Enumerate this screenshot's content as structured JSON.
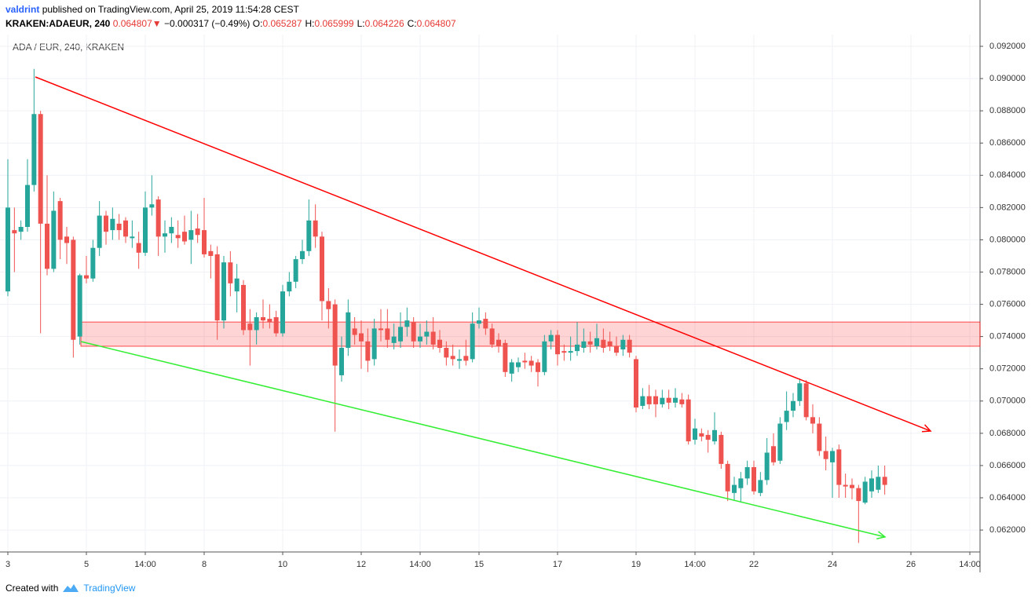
{
  "header": {
    "author": "valdrint",
    "published": "published on TradingView.com, April 25, 2019 11:54:28 CEST",
    "symbol": "KRAKEN:ADAEUR, 240",
    "last": "0.064807",
    "arrow": "▼",
    "change": "−0.000317 (−0.49%)",
    "ohlc": [
      {
        "label": "O:",
        "value": "0.065287"
      },
      {
        "label": "H:",
        "value": "0.065999"
      },
      {
        "label": "L:",
        "value": "0.064226"
      },
      {
        "label": "C:",
        "value": "0.064807"
      }
    ]
  },
  "footer": {
    "created": "Created with",
    "brand": "TradingView"
  },
  "chart_data": {
    "type": "candlestick",
    "title": "ADA / EUR, 240, KRAKEN",
    "up_color": "#26a69a",
    "down_color": "#ef5350",
    "grid": true,
    "xlim": [
      2.8,
      27.76
    ],
    "ylim": [
      0.06064,
      0.09273
    ],
    "xticks": [
      3,
      5,
      {
        "value": 6.5,
        "label": "14:00"
      },
      8,
      10,
      12,
      {
        "value": 13.5,
        "label": "14:00"
      },
      15,
      17,
      19,
      {
        "value": 20.5,
        "label": "14:00"
      },
      22,
      24,
      26,
      {
        "value": 27.5,
        "label": "14:00"
      }
    ],
    "yticks": [
      {
        "value": 0.062,
        "label": "0.062000"
      },
      {
        "value": 0.064,
        "label": "0.064000"
      },
      {
        "value": 0.066,
        "label": "0.066000"
      },
      {
        "value": 0.068,
        "label": "0.068000"
      },
      {
        "value": 0.07,
        "label": "0.070000"
      },
      {
        "value": 0.072,
        "label": "0.072000"
      },
      {
        "value": 0.074,
        "label": "0.074000"
      },
      {
        "value": 0.076,
        "label": "0.076000"
      },
      {
        "value": 0.078,
        "label": "0.078000"
      },
      {
        "value": 0.08,
        "label": "0.080000"
      },
      {
        "value": 0.082,
        "label": "0.082000"
      },
      {
        "value": 0.084,
        "label": "0.084000"
      },
      {
        "value": 0.086,
        "label": "0.086000"
      },
      {
        "value": 0.088,
        "label": "0.088000"
      },
      {
        "value": 0.09,
        "label": "0.090000"
      },
      {
        "value": 0.092,
        "label": "0.092000"
      }
    ],
    "x": [
      3,
      3.167,
      3.333,
      3.5,
      3.667,
      3.833,
      4,
      4.167,
      4.333,
      4.5,
      4.667,
      4.833,
      5,
      5.167,
      5.333,
      5.5,
      5.667,
      5.833,
      6,
      6.167,
      6.333,
      6.5,
      6.667,
      6.833,
      7,
      7.167,
      7.333,
      7.5,
      7.667,
      7.833,
      8,
      8.167,
      8.333,
      8.5,
      8.667,
      8.833,
      9,
      9.167,
      9.333,
      9.5,
      9.667,
      9.833,
      10,
      10.167,
      10.333,
      10.5,
      10.667,
      10.833,
      11,
      11.167,
      11.333,
      11.5,
      11.667,
      11.833,
      12,
      12.167,
      12.333,
      12.5,
      12.667,
      12.833,
      13,
      13.167,
      13.333,
      13.5,
      13.667,
      13.833,
      14,
      14.167,
      14.333,
      14.5,
      14.667,
      14.833,
      15,
      15.167,
      15.333,
      15.5,
      15.667,
      15.833,
      16,
      16.167,
      16.333,
      16.5,
      16.667,
      16.833,
      17,
      17.167,
      17.333,
      17.5,
      17.667,
      17.833,
      18,
      18.167,
      18.333,
      18.5,
      18.667,
      18.833,
      19,
      19.167,
      19.333,
      19.5,
      19.667,
      19.833,
      20,
      20.167,
      20.333,
      20.5,
      20.667,
      20.833,
      21,
      21.167,
      21.333,
      21.5,
      21.667,
      21.833,
      22,
      22.167,
      22.333,
      22.5,
      22.667,
      22.833,
      23,
      23.167,
      23.333,
      23.5,
      23.667,
      23.833,
      24,
      24.167,
      24.333,
      24.5,
      24.667,
      24.833,
      25,
      25.167,
      25.333
    ],
    "open": [
      0.0768,
      0.0806,
      0.0805,
      0.0808,
      0.0834,
      0.0878,
      0.081,
      0.0782,
      0.0824,
      0.0802,
      0.08,
      0.074,
      0.0778,
      0.0776,
      0.0795,
      0.0815,
      0.0806,
      0.081,
      0.0812,
      0.0801,
      0.0798,
      0.0792,
      0.082,
      0.0825,
      0.0802,
      0.0804,
      0.0803,
      0.0805,
      0.08,
      0.0807,
      0.0806,
      0.0793,
      0.0791,
      0.075,
      0.0786,
      0.0768,
      0.0772,
      0.0748,
      0.0744,
      0.0752,
      0.0751,
      0.0752,
      0.0742,
      0.0768,
      0.0774,
      0.0788,
      0.0793,
      0.0812,
      0.0802,
      0.0762,
      0.076,
      0.0716,
      0.0733,
      0.0745,
      0.0742,
      0.0737,
      0.0726,
      0.0745,
      0.0745,
      0.0736,
      0.0737,
      0.0746,
      0.0749,
      0.0737,
      0.074,
      0.0743,
      0.0738,
      0.0733,
      0.0728,
      0.0725,
      0.0728,
      0.0726,
      0.0748,
      0.0751,
      0.0745,
      0.0738,
      0.0736,
      0.0717,
      0.0721,
      0.0725,
      0.0725,
      0.0724,
      0.0718,
      0.0737,
      0.0741,
      0.0731,
      0.073,
      0.0731,
      0.0733,
      0.0737,
      0.0734,
      0.0738,
      0.0737,
      0.0734,
      0.0732,
      0.0738,
      0.0726,
      0.0697,
      0.0703,
      0.0703,
      0.0698,
      0.0702,
      0.0699,
      0.0701,
      0.0701,
      0.0676,
      0.068,
      0.0679,
      0.0675,
      0.0679,
      0.0661,
      0.0643,
      0.0646,
      0.0652,
      0.0659,
      0.0643,
      0.0651,
      0.0672,
      0.0663,
      0.0687,
      0.0694,
      0.07,
      0.0711,
      0.069,
      0.0686,
      0.0669,
      0.0662,
      0.067,
      0.0648,
      0.0648,
      0.0646,
      0.0637,
      0.0644,
      0.0645,
      0.0653
    ],
    "high": [
      0.085,
      0.082,
      0.0812,
      0.085,
      0.0906,
      0.088,
      0.084,
      0.083,
      0.0826,
      0.0808,
      0.0802,
      0.0779,
      0.079,
      0.08,
      0.0824,
      0.0818,
      0.082,
      0.0816,
      0.0814,
      0.0812,
      0.0805,
      0.083,
      0.084,
      0.0827,
      0.0812,
      0.0814,
      0.0812,
      0.0815,
      0.0818,
      0.0816,
      0.0826,
      0.0797,
      0.0796,
      0.079,
      0.0793,
      0.0785,
      0.0775,
      0.0757,
      0.0755,
      0.0763,
      0.076,
      0.0756,
      0.0772,
      0.078,
      0.079,
      0.08,
      0.0825,
      0.0822,
      0.0805,
      0.077,
      0.0763,
      0.074,
      0.0763,
      0.0752,
      0.075,
      0.0745,
      0.0751,
      0.0757,
      0.0757,
      0.0748,
      0.0755,
      0.0758,
      0.0752,
      0.0748,
      0.075,
      0.0752,
      0.0744,
      0.0737,
      0.0735,
      0.0732,
      0.0738,
      0.0755,
      0.0758,
      0.0755,
      0.0748,
      0.0742,
      0.0738,
      0.0726,
      0.0727,
      0.073,
      0.0728,
      0.0726,
      0.0741,
      0.0744,
      0.0744,
      0.0735,
      0.074,
      0.0749,
      0.0745,
      0.0743,
      0.0748,
      0.0745,
      0.0743,
      0.074,
      0.0741,
      0.0741,
      0.0728,
      0.0708,
      0.071,
      0.0707,
      0.0707,
      0.0707,
      0.0708,
      0.0705,
      0.0704,
      0.0689,
      0.0683,
      0.0682,
      0.0693,
      0.0681,
      0.0663,
      0.0653,
      0.0656,
      0.0663,
      0.0663,
      0.0656,
      0.0677,
      0.068,
      0.069,
      0.0706,
      0.0705,
      0.0714,
      0.0713,
      0.0698,
      0.069,
      0.0678,
      0.0671,
      0.0673,
      0.0655,
      0.0652,
      0.0648,
      0.0653,
      0.0657,
      0.066,
      0.066
    ],
    "low": [
      0.0765,
      0.078,
      0.08,
      0.0805,
      0.083,
      0.0742,
      0.0778,
      0.078,
      0.0788,
      0.0785,
      0.0727,
      0.0735,
      0.0773,
      0.0774,
      0.079,
      0.0797,
      0.08,
      0.08,
      0.0798,
      0.0795,
      0.0782,
      0.079,
      0.0815,
      0.079,
      0.0792,
      0.0798,
      0.0795,
      0.0797,
      0.0785,
      0.0798,
      0.0789,
      0.0776,
      0.0738,
      0.0745,
      0.0765,
      0.0755,
      0.0741,
      0.0722,
      0.0735,
      0.0745,
      0.0745,
      0.074,
      0.074,
      0.0765,
      0.077,
      0.0785,
      0.079,
      0.0795,
      0.075,
      0.0745,
      0.0681,
      0.0712,
      0.0728,
      0.0735,
      0.072,
      0.0718,
      0.0722,
      0.0737,
      0.0733,
      0.0732,
      0.0733,
      0.074,
      0.0733,
      0.0733,
      0.0735,
      0.0732,
      0.073,
      0.0722,
      0.0722,
      0.072,
      0.0722,
      0.0724,
      0.0745,
      0.0741,
      0.0733,
      0.073,
      0.0715,
      0.0712,
      0.0718,
      0.072,
      0.0718,
      0.0709,
      0.0716,
      0.0732,
      0.0722,
      0.0725,
      0.0725,
      0.0728,
      0.073,
      0.073,
      0.0732,
      0.073,
      0.0731,
      0.0728,
      0.0728,
      0.0727,
      0.0693,
      0.0695,
      0.0695,
      0.069,
      0.0696,
      0.0695,
      0.0696,
      0.0696,
      0.0673,
      0.0673,
      0.0675,
      0.0668,
      0.0673,
      0.0658,
      0.0638,
      0.0638,
      0.0637,
      0.0648,
      0.0642,
      0.0641,
      0.0648,
      0.066,
      0.0661,
      0.0682,
      0.069,
      0.0697,
      0.0688,
      0.068,
      0.0666,
      0.0657,
      0.064,
      0.064,
      0.064,
      0.0639,
      0.0612,
      0.0636,
      0.064,
      0.0643,
      0.0642
    ],
    "close": [
      0.082,
      0.0804,
      0.0808,
      0.0834,
      0.0878,
      0.081,
      0.0782,
      0.0818,
      0.08,
      0.0798,
      0.0738,
      0.0778,
      0.0776,
      0.0795,
      0.0815,
      0.0805,
      0.0813,
      0.0806,
      0.0802,
      0.0802,
      0.0792,
      0.082,
      0.0822,
      0.0802,
      0.0804,
      0.0808,
      0.0801,
      0.0799,
      0.0806,
      0.0803,
      0.0791,
      0.079,
      0.075,
      0.0786,
      0.0773,
      0.0776,
      0.0744,
      0.0744,
      0.0752,
      0.075,
      0.0749,
      0.0742,
      0.0768,
      0.0774,
      0.0788,
      0.0793,
      0.0812,
      0.0802,
      0.0762,
      0.0757,
      0.0722,
      0.0733,
      0.0755,
      0.0741,
      0.0737,
      0.0725,
      0.0745,
      0.0744,
      0.0738,
      0.074,
      0.0746,
      0.075,
      0.0737,
      0.074,
      0.0743,
      0.0735,
      0.0733,
      0.0727,
      0.0726,
      0.0726,
      0.0725,
      0.0748,
      0.075,
      0.0745,
      0.0735,
      0.0734,
      0.0718,
      0.0724,
      0.0724,
      0.0724,
      0.0722,
      0.0718,
      0.0737,
      0.0741,
      0.0729,
      0.073,
      0.0731,
      0.0735,
      0.0737,
      0.0735,
      0.0739,
      0.0733,
      0.0734,
      0.073,
      0.0738,
      0.073,
      0.0696,
      0.0703,
      0.0698,
      0.0698,
      0.0702,
      0.0699,
      0.0702,
      0.0698,
      0.0675,
      0.0683,
      0.0678,
      0.0676,
      0.0682,
      0.0661,
      0.0644,
      0.0648,
      0.0652,
      0.0659,
      0.0644,
      0.0651,
      0.0668,
      0.0662,
      0.0686,
      0.0694,
      0.07,
      0.0711,
      0.069,
      0.0686,
      0.0669,
      0.0664,
      0.0669,
      0.0648,
      0.0647,
      0.0646,
      0.0638,
      0.065,
      0.0652,
      0.0653,
      0.0648
    ],
    "trendlines": [
      {
        "color": "#ff0000",
        "points": [
          [
            3.7,
            0.0901
          ],
          [
            26.5,
            0.06814
          ]
        ]
      },
      {
        "color": "#33ee33",
        "points": [
          [
            4.86,
            0.07369
          ],
          [
            25.34,
            0.06157
          ]
        ]
      }
    ],
    "zone": {
      "color": "#ff0000",
      "x": 4.86,
      "ylim": [
        0.0734,
        0.0749
      ]
    }
  }
}
